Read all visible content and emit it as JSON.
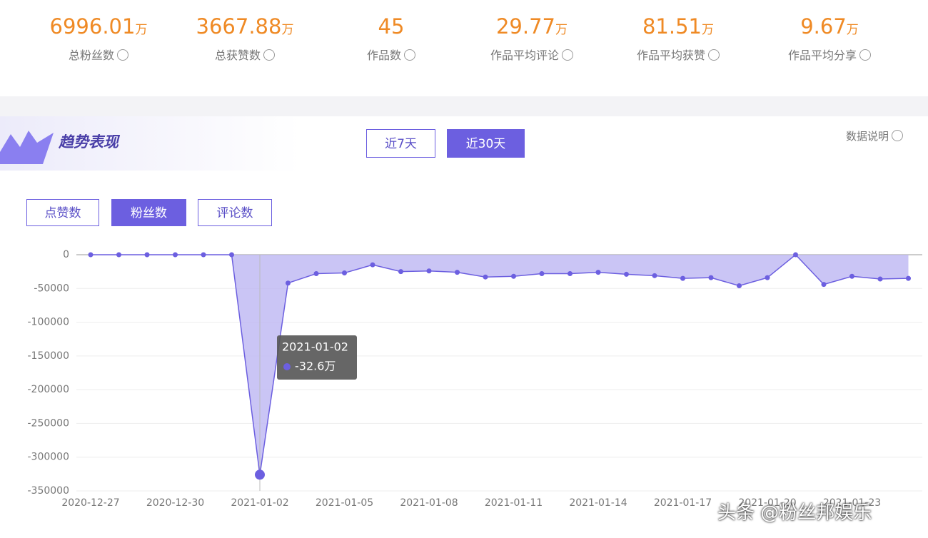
{
  "stats": [
    {
      "value": "6996.01",
      "unit": "万",
      "label": "总粉丝数"
    },
    {
      "value": "3667.88",
      "unit": "万",
      "label": "总获赞数"
    },
    {
      "value": "45",
      "unit": "",
      "label": "作品数"
    },
    {
      "value": "29.77",
      "unit": "万",
      "label": "作品平均评论"
    },
    {
      "value": "81.51",
      "unit": "万",
      "label": "作品平均获赞"
    },
    {
      "value": "9.67",
      "unit": "万",
      "label": "作品平均分享"
    }
  ],
  "section": {
    "title": "趋势表现",
    "help": "数据说明"
  },
  "range_buttons": [
    {
      "label": "近7天",
      "active": false
    },
    {
      "label": "近30天",
      "active": true
    }
  ],
  "metric_buttons": [
    {
      "label": "点赞数",
      "active": false
    },
    {
      "label": "粉丝数",
      "active": true
    },
    {
      "label": "评论数",
      "active": false
    }
  ],
  "chart_data": {
    "type": "area",
    "categories": [
      "2020-12-27",
      "2020-12-28",
      "2020-12-29",
      "2020-12-30",
      "2020-12-31",
      "2021-01-01",
      "2021-01-02",
      "2021-01-03",
      "2021-01-04",
      "2021-01-05",
      "2021-01-06",
      "2021-01-07",
      "2021-01-08",
      "2021-01-09",
      "2021-01-10",
      "2021-01-11",
      "2021-01-12",
      "2021-01-13",
      "2021-01-14",
      "2021-01-15",
      "2021-01-16",
      "2021-01-17",
      "2021-01-18",
      "2021-01-19",
      "2021-01-20",
      "2021-01-21",
      "2021-01-22",
      "2021-01-23",
      "2021-01-24",
      "2021-01-25"
    ],
    "values": [
      0,
      0,
      0,
      0,
      0,
      0,
      -326000,
      -42000,
      -28000,
      -27000,
      -15000,
      -25000,
      -24000,
      -26000,
      -33000,
      -32000,
      -28000,
      -28000,
      -26000,
      -29000,
      -31000,
      -35000,
      -34000,
      -46000,
      -34000,
      0,
      -44000,
      -32000,
      -36000,
      -35000
    ],
    "color": "#6c5fe0",
    "fill": "#bdb6f3",
    "ylim": [
      -350000,
      0
    ],
    "yticks": [
      0,
      -50000,
      -100000,
      -150000,
      -200000,
      -250000,
      -300000,
      -350000
    ],
    "tooltip_label": "-32.6万"
  },
  "watermark": "头条 @粉丝邦娱乐"
}
